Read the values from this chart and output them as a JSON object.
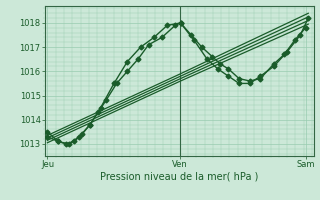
{
  "background_color": "#cce8d8",
  "plot_bg_color": "#cce8d8",
  "grid_color": "#99ccb0",
  "line_color": "#1a5c2a",
  "marker_color": "#1a5c2a",
  "title": "Pression niveau de la mer( hPa )",
  "ylim": [
    1012.5,
    1018.7
  ],
  "yticks": [
    1013,
    1014,
    1015,
    1016,
    1017,
    1018
  ],
  "series": [
    {
      "x": [
        0.0,
        0.04,
        0.07,
        0.1,
        0.13,
        0.16,
        0.19,
        0.22,
        0.26,
        0.3,
        0.34,
        0.38,
        0.43,
        0.48,
        0.5,
        0.54,
        0.58,
        0.62,
        0.65,
        0.68,
        0.72,
        0.76,
        0.8,
        0.85,
        0.89,
        0.93,
        0.97
      ],
      "y": [
        1013.3,
        1013.1,
        1013.0,
        1013.1,
        1013.4,
        1013.8,
        1014.3,
        1014.8,
        1015.5,
        1016.0,
        1016.5,
        1017.1,
        1017.4,
        1017.9,
        1018.0,
        1017.5,
        1017.0,
        1016.6,
        1016.3,
        1016.1,
        1015.7,
        1015.6,
        1015.7,
        1016.3,
        1016.7,
        1017.3,
        1017.8
      ],
      "marker": "D",
      "markersize": 2.5,
      "linewidth": 1.0,
      "zorder": 5
    },
    {
      "x": [
        0.0,
        0.04,
        0.08,
        0.12,
        0.16,
        0.2,
        0.25,
        0.3,
        0.35,
        0.4,
        0.45,
        0.5,
        0.55,
        0.6,
        0.64,
        0.68,
        0.72,
        0.76,
        0.8,
        0.85,
        0.9,
        0.95,
        0.98
      ],
      "y": [
        1013.5,
        1013.1,
        1013.0,
        1013.3,
        1013.8,
        1014.5,
        1015.5,
        1016.4,
        1017.0,
        1017.4,
        1017.9,
        1018.0,
        1017.3,
        1016.5,
        1016.1,
        1015.8,
        1015.5,
        1015.5,
        1015.8,
        1016.2,
        1016.8,
        1017.5,
        1018.2
      ],
      "marker": "D",
      "markersize": 2.5,
      "linewidth": 1.0,
      "zorder": 5
    },
    {
      "x": [
        0.0,
        0.5,
        0.98
      ],
      "y": [
        1013.05,
        1015.6,
        1017.95
      ],
      "marker": null,
      "markersize": 0,
      "linewidth": 0.9,
      "zorder": 3
    },
    {
      "x": [
        0.0,
        0.5,
        0.98
      ],
      "y": [
        1013.15,
        1015.7,
        1018.1
      ],
      "marker": null,
      "markersize": 0,
      "linewidth": 0.9,
      "zorder": 3
    },
    {
      "x": [
        0.0,
        0.5,
        0.98
      ],
      "y": [
        1013.25,
        1015.8,
        1018.25
      ],
      "marker": null,
      "markersize": 0,
      "linewidth": 0.9,
      "zorder": 3
    },
    {
      "x": [
        0.0,
        0.5,
        0.98
      ],
      "y": [
        1013.35,
        1015.9,
        1018.4
      ],
      "marker": null,
      "markersize": 0,
      "linewidth": 0.9,
      "zorder": 3
    }
  ],
  "vline_x": 0.497,
  "vline_color": "#336644",
  "xtick_positions": [
    0.0,
    0.497,
    0.97
  ],
  "xtick_labels": [
    "Jeu",
    "Ven",
    "Sam"
  ],
  "minor_xticks": 16,
  "minor_yticks": 5
}
